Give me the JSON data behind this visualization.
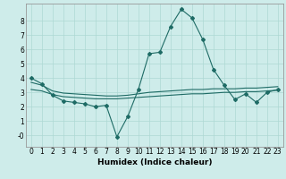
{
  "xlabel": "Humidex (Indice chaleur)",
  "ylabel": "",
  "background_color": "#ceecea",
  "grid_color": "#aed8d4",
  "line_color": "#1e6b65",
  "x_values": [
    0,
    1,
    2,
    3,
    4,
    5,
    6,
    7,
    8,
    9,
    10,
    11,
    12,
    13,
    14,
    15,
    16,
    17,
    18,
    19,
    20,
    21,
    22,
    23
  ],
  "line1": [
    4.0,
    3.6,
    2.8,
    2.4,
    2.3,
    2.2,
    2.0,
    2.1,
    -0.1,
    1.3,
    3.2,
    5.7,
    5.8,
    7.6,
    8.8,
    8.2,
    6.7,
    4.6,
    3.5,
    2.5,
    2.9,
    2.3,
    3.0,
    3.2
  ],
  "line2": [
    3.2,
    3.1,
    2.85,
    2.7,
    2.65,
    2.6,
    2.55,
    2.55,
    2.55,
    2.6,
    2.65,
    2.7,
    2.75,
    2.8,
    2.85,
    2.9,
    2.9,
    2.95,
    3.0,
    3.0,
    3.05,
    3.05,
    3.1,
    3.15
  ],
  "line3": [
    3.7,
    3.5,
    3.1,
    2.95,
    2.9,
    2.85,
    2.8,
    2.75,
    2.75,
    2.8,
    2.9,
    3.0,
    3.05,
    3.1,
    3.15,
    3.2,
    3.2,
    3.25,
    3.25,
    3.25,
    3.3,
    3.3,
    3.35,
    3.4
  ],
  "ylim": [
    -0.8,
    9.2
  ],
  "xlim": [
    -0.5,
    23.5
  ],
  "yticks": [
    0,
    1,
    2,
    3,
    4,
    5,
    6,
    7,
    8
  ],
  "ytick_labels": [
    "-0",
    "1",
    "2",
    "3",
    "4",
    "5",
    "6",
    "7",
    "8"
  ],
  "xticks": [
    0,
    1,
    2,
    3,
    4,
    5,
    6,
    7,
    8,
    9,
    10,
    11,
    12,
    13,
    14,
    15,
    16,
    17,
    18,
    19,
    20,
    21,
    22,
    23
  ],
  "xlabel_fontsize": 6.5,
  "tick_fontsize": 5.5,
  "marker_size": 2.0,
  "line_width": 0.8
}
